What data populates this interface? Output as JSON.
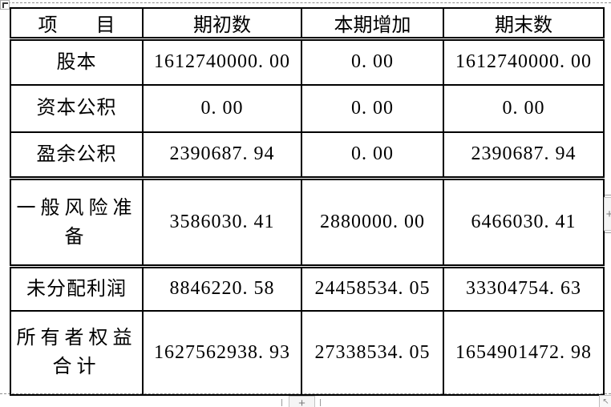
{
  "table": {
    "headers": [
      "项　　目",
      "期初数",
      "本期增加",
      "期末数"
    ],
    "rows": [
      {
        "label": "股本",
        "values": [
          "1612740000. 00",
          "0. 00",
          "1612740000. 00"
        ]
      },
      {
        "label": "资本公积",
        "values": [
          "0. 00",
          "0. 00",
          "0. 00"
        ]
      },
      {
        "label": "盈余公积",
        "values": [
          "2390687. 94",
          "0. 00",
          "2390687. 94"
        ]
      },
      {
        "label": "一般风险准\n备",
        "values": [
          "3586030. 41",
          "2880000. 00",
          "6466030. 41"
        ]
      },
      {
        "label": "未分配利润",
        "values": [
          "8846220. 58",
          "24458534. 05",
          "33304754. 63"
        ]
      },
      {
        "label": "所有者权益\n合计",
        "values": [
          "1627562938. 93",
          "27338534. 05",
          "1654901472. 98"
        ]
      }
    ]
  },
  "icons": {
    "plus": "+",
    "resize_arrow": "↖"
  },
  "colors": {
    "table_border": "#000000",
    "gridline_dashed": "#8f8f8f",
    "control_background": "#f5f5f5",
    "control_border": "#c3c3c3",
    "control_glyph": "#7a7a7a"
  }
}
